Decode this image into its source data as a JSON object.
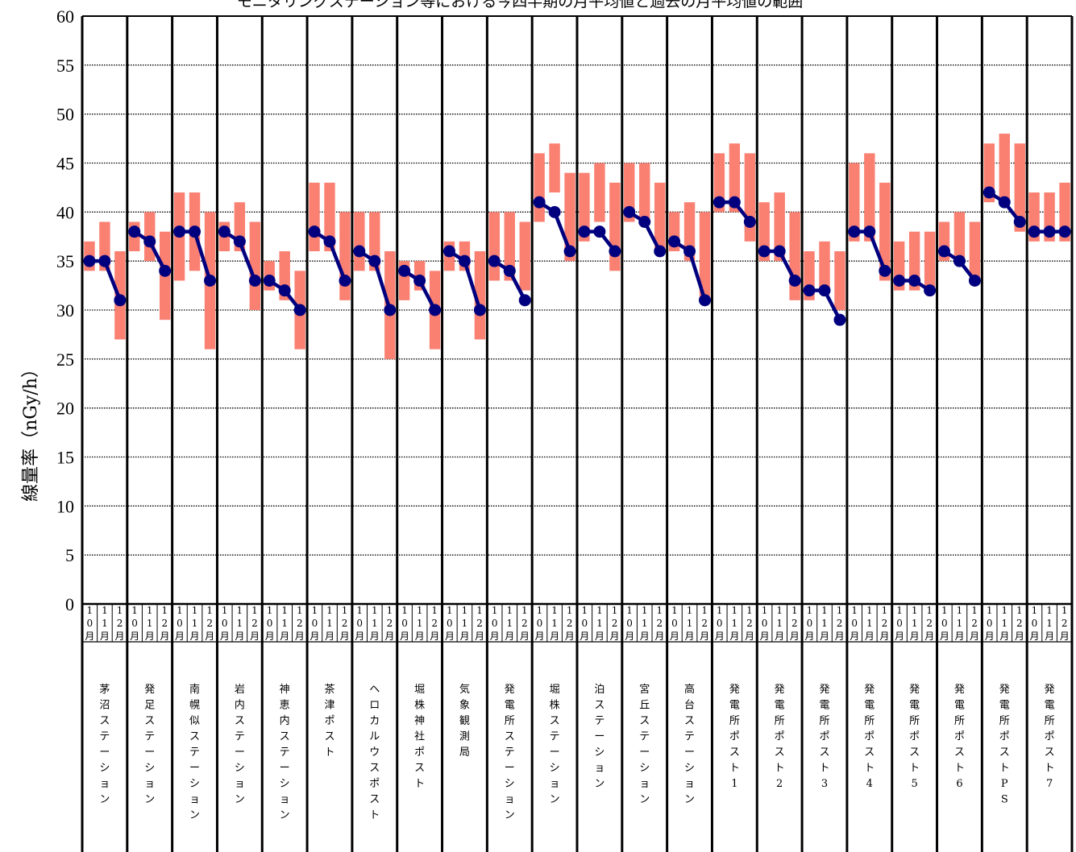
{
  "chart_data": {
    "type": "line",
    "title": "モニタリングステーション等における今四半期の月平均値と過去の月平均値の範囲",
    "ylabel": "線量率（nGy/h）",
    "ylim": [
      0,
      60
    ],
    "yticks": [
      "0",
      "5",
      "10",
      "15",
      "20",
      "25",
      "30",
      "35",
      "40",
      "45",
      "50",
      "55",
      "60"
    ],
    "months": [
      "10月",
      "11月",
      "12月"
    ],
    "grid": true,
    "colors": {
      "range": "#fa8072",
      "line": "#00007f",
      "grid": "#000000"
    },
    "stations": [
      {
        "name": "茅沼ステーション",
        "values": [
          35,
          35,
          31
        ],
        "ranges": [
          [
            34,
            37
          ],
          [
            34,
            39
          ],
          [
            27,
            36
          ]
        ]
      },
      {
        "name": "発足ステーション",
        "values": [
          38,
          37,
          34
        ],
        "ranges": [
          [
            36,
            39
          ],
          [
            35,
            40
          ],
          [
            29,
            38
          ]
        ]
      },
      {
        "name": "南幌似ステーション",
        "values": [
          38,
          38,
          33
        ],
        "ranges": [
          [
            33,
            42
          ],
          [
            34,
            42
          ],
          [
            26,
            40
          ]
        ]
      },
      {
        "name": "岩内ステーション",
        "values": [
          38,
          37,
          33
        ],
        "ranges": [
          [
            36,
            39
          ],
          [
            36,
            41
          ],
          [
            30,
            39
          ]
        ]
      },
      {
        "name": "神恵内ステーション",
        "values": [
          33,
          32,
          30
        ],
        "ranges": [
          [
            32,
            35
          ],
          [
            31,
            36
          ],
          [
            26,
            34
          ]
        ]
      },
      {
        "name": "茶津ポスト",
        "values": [
          38,
          37,
          33
        ],
        "ranges": [
          [
            36,
            43
          ],
          [
            36,
            43
          ],
          [
            31,
            40
          ]
        ]
      },
      {
        "name": "ヘロカルウスポスト",
        "values": [
          36,
          35,
          30
        ],
        "ranges": [
          [
            34,
            40
          ],
          [
            34,
            40
          ],
          [
            25,
            36
          ]
        ]
      },
      {
        "name": "堀株神社ポスト",
        "values": [
          34,
          33,
          30
        ],
        "ranges": [
          [
            31,
            35
          ],
          [
            32,
            35
          ],
          [
            26,
            34
          ]
        ]
      },
      {
        "name": "気象観測局",
        "values": [
          36,
          35,
          30
        ],
        "ranges": [
          [
            34,
            37
          ],
          [
            34,
            37
          ],
          [
            27,
            36
          ]
        ]
      },
      {
        "name": "発電所ステーション",
        "values": [
          35,
          34,
          31
        ],
        "ranges": [
          [
            33,
            40
          ],
          [
            33,
            40
          ],
          [
            32,
            39
          ]
        ]
      },
      {
        "name": "堀株ステーション",
        "values": [
          41,
          40,
          36
        ],
        "ranges": [
          [
            39,
            46
          ],
          [
            42,
            47
          ],
          [
            35,
            44
          ]
        ]
      },
      {
        "name": "泊ステーション",
        "values": [
          38,
          38,
          36
        ],
        "ranges": [
          [
            37,
            44
          ],
          [
            39,
            45
          ],
          [
            34,
            43
          ]
        ]
      },
      {
        "name": "宮丘ステーション",
        "values": [
          40,
          39,
          36
        ],
        "ranges": [
          [
            39,
            45
          ],
          [
            39,
            45
          ],
          [
            36,
            43
          ]
        ]
      },
      {
        "name": "高台ステーション",
        "values": [
          37,
          36,
          31
        ],
        "ranges": [
          [
            36,
            40
          ],
          [
            35,
            41
          ],
          [
            31,
            40
          ]
        ]
      },
      {
        "name": "発電所ポスト1",
        "values": [
          41,
          41,
          39
        ],
        "ranges": [
          [
            40,
            46
          ],
          [
            40,
            47
          ],
          [
            37,
            46
          ]
        ]
      },
      {
        "name": "発電所ポスト2",
        "values": [
          36,
          36,
          33
        ],
        "ranges": [
          [
            35,
            41
          ],
          [
            35,
            42
          ],
          [
            31,
            40
          ]
        ]
      },
      {
        "name": "発電所ポスト3",
        "values": [
          32,
          32,
          29
        ],
        "ranges": [
          [
            31,
            36
          ],
          [
            32,
            37
          ],
          [
            30,
            36
          ]
        ]
      },
      {
        "name": "発電所ポスト4",
        "values": [
          38,
          38,
          34
        ],
        "ranges": [
          [
            37,
            45
          ],
          [
            37,
            46
          ],
          [
            33,
            43
          ]
        ]
      },
      {
        "name": "発電所ポスト5",
        "values": [
          33,
          33,
          32
        ],
        "ranges": [
          [
            32,
            37
          ],
          [
            32,
            38
          ],
          [
            32,
            38
          ]
        ]
      },
      {
        "name": "発電所ポスト6",
        "values": [
          36,
          35,
          33
        ],
        "ranges": [
          [
            35,
            39
          ],
          [
            35,
            40
          ],
          [
            33,
            39
          ]
        ]
      },
      {
        "name": "発電所ポストPS",
        "values": [
          42,
          41,
          39
        ],
        "ranges": [
          [
            41,
            47
          ],
          [
            41,
            48
          ],
          [
            38,
            47
          ]
        ]
      },
      {
        "name": "発電所ポスト7",
        "values": [
          38,
          38,
          38
        ],
        "ranges": [
          [
            37,
            42
          ],
          [
            37,
            42
          ],
          [
            37,
            43
          ]
        ]
      }
    ]
  }
}
